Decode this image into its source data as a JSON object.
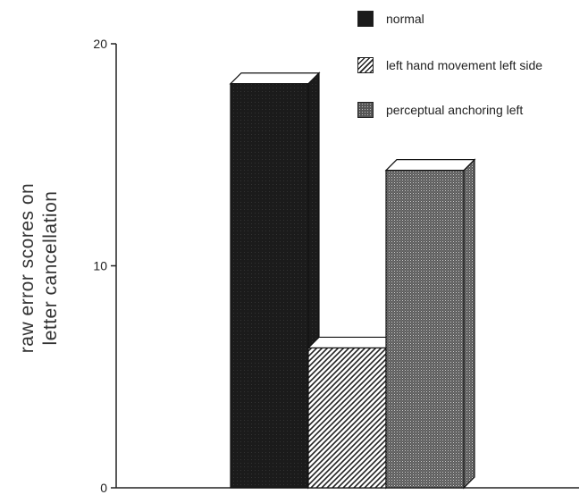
{
  "chart_data": {
    "type": "bar",
    "style": "3d-grouped",
    "ylabel_lines": [
      "raw error scores on",
      "letter cancellation"
    ],
    "xlabel": "",
    "ylim": [
      0,
      20
    ],
    "yticks": [
      "0",
      "10",
      "20"
    ],
    "grid": false,
    "legend_position": "top-right",
    "series": [
      {
        "name": "normal",
        "value": 18.2,
        "fill": "solid-dark",
        "color": "#1b1b1b"
      },
      {
        "name": "left hand movement left side",
        "value": 6.3,
        "fill": "diagonal-hatch",
        "color": "#3a3a3a"
      },
      {
        "name": "perceptual anchoring left",
        "value": 14.3,
        "fill": "crosshatch-dots",
        "color": "#4a4a4a"
      }
    ]
  }
}
